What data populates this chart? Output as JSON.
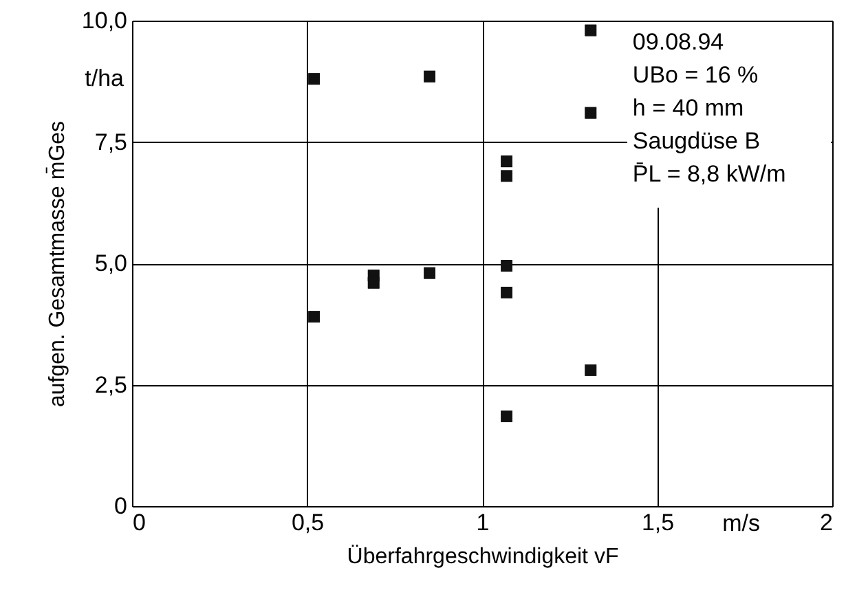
{
  "chart_data": {
    "type": "scatter",
    "xlabel": "Überfahrgeschwindigkeit vF",
    "ylabel": "aufgen. Gesamtmasse m̄Ges",
    "annotations": [
      "t/ha",
      "m/s",
      "09.08.94",
      "UBo = 16 %",
      "h = 40 mm",
      "Saugdüse B",
      "P̄L = 8,8 kW/m"
    ],
    "series": [
      {
        "color": "#111111",
        "x": [
          0.52,
          0.85,
          0.52,
          0.69,
          0.69,
          0.85,
          1.07,
          1.07,
          1.07,
          1.07,
          1.31,
          1.07,
          1.31,
          1.31
        ],
        "values": [
          8.8,
          8.85,
          3.9,
          4.75,
          4.6,
          4.8,
          7.1,
          6.8,
          4.95,
          4.4,
          2.8,
          1.85,
          9.8,
          8.1
        ]
      }
    ],
    "xlim": [
      0,
      2
    ],
    "ylim": [
      0,
      10
    ],
    "xticks": [
      0,
      {
        "value": 0.5,
        "label": "0,5"
      },
      1,
      {
        "value": 1.5,
        "label": "1,5"
      },
      2
    ],
    "yticks": [
      0,
      {
        "value": 2.5,
        "label": "2,5"
      },
      {
        "value": 5,
        "label": "5,0"
      },
      {
        "value": 7.5,
        "label": "7,5"
      },
      {
        "value": 10,
        "label": "10,0"
      }
    ],
    "grid": true,
    "marker": "square"
  }
}
